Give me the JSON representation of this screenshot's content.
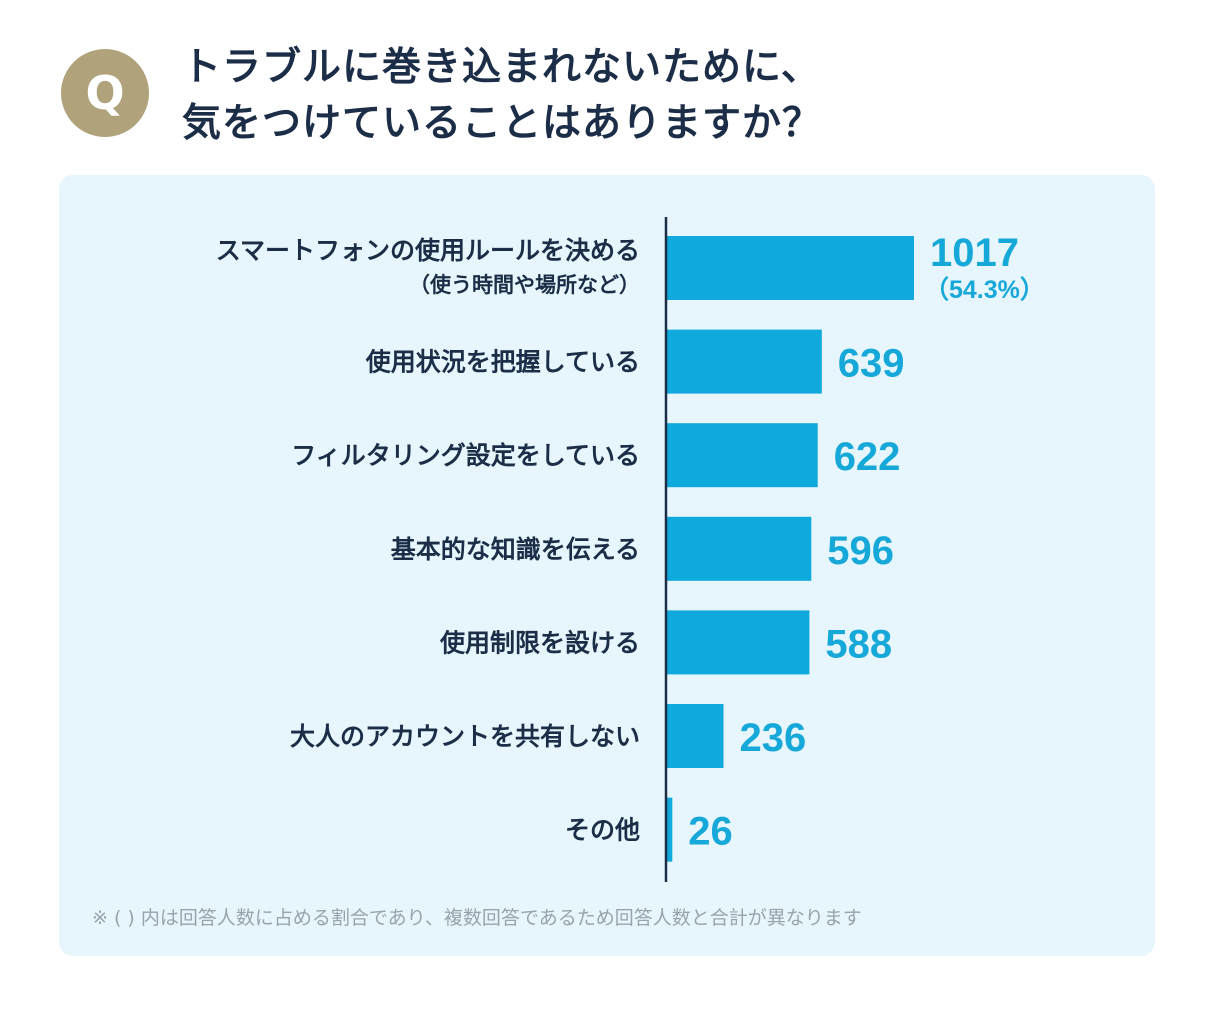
{
  "badge": {
    "label": "Q"
  },
  "title": {
    "line1": "トラブルに巻き込まれないために、",
    "line2": "気をつけていることはありますか？"
  },
  "colors": {
    "badge": "#b0a27a",
    "title": "#1c2e47",
    "panel": "#e6f6fc",
    "bar": "#0fa9dd",
    "value": "#16a8d8",
    "axis": "#1c2e47",
    "note": "#9aa3ab"
  },
  "chart_data": {
    "type": "bar",
    "orientation": "horizontal",
    "categories": [
      "スマートフォンの使用ルールを決める",
      "使用状況を把握している",
      "フィルタリング設定をしている",
      "基本的な知識を伝える",
      "使用制限を設ける",
      "大人のアカウントを共有しない",
      "その他"
    ],
    "category_sublabels": [
      "（使う時間や場所など）",
      "",
      "",
      "",
      "",
      "",
      ""
    ],
    "values": [
      1017,
      639,
      622,
      596,
      588,
      236,
      26
    ],
    "value_notes": [
      "（54.3%）",
      "",
      "",
      "",
      "",
      "",
      ""
    ],
    "value_labels": [
      "1017",
      "639",
      "622",
      "596",
      "588",
      "236",
      "26"
    ],
    "title": "",
    "xlabel": "",
    "ylabel": "",
    "grid": false,
    "legend": "none"
  },
  "footnote": "※ ( ) 内は回答人数に占める割合であり、複数回答であるため回答人数と合計が異なります"
}
